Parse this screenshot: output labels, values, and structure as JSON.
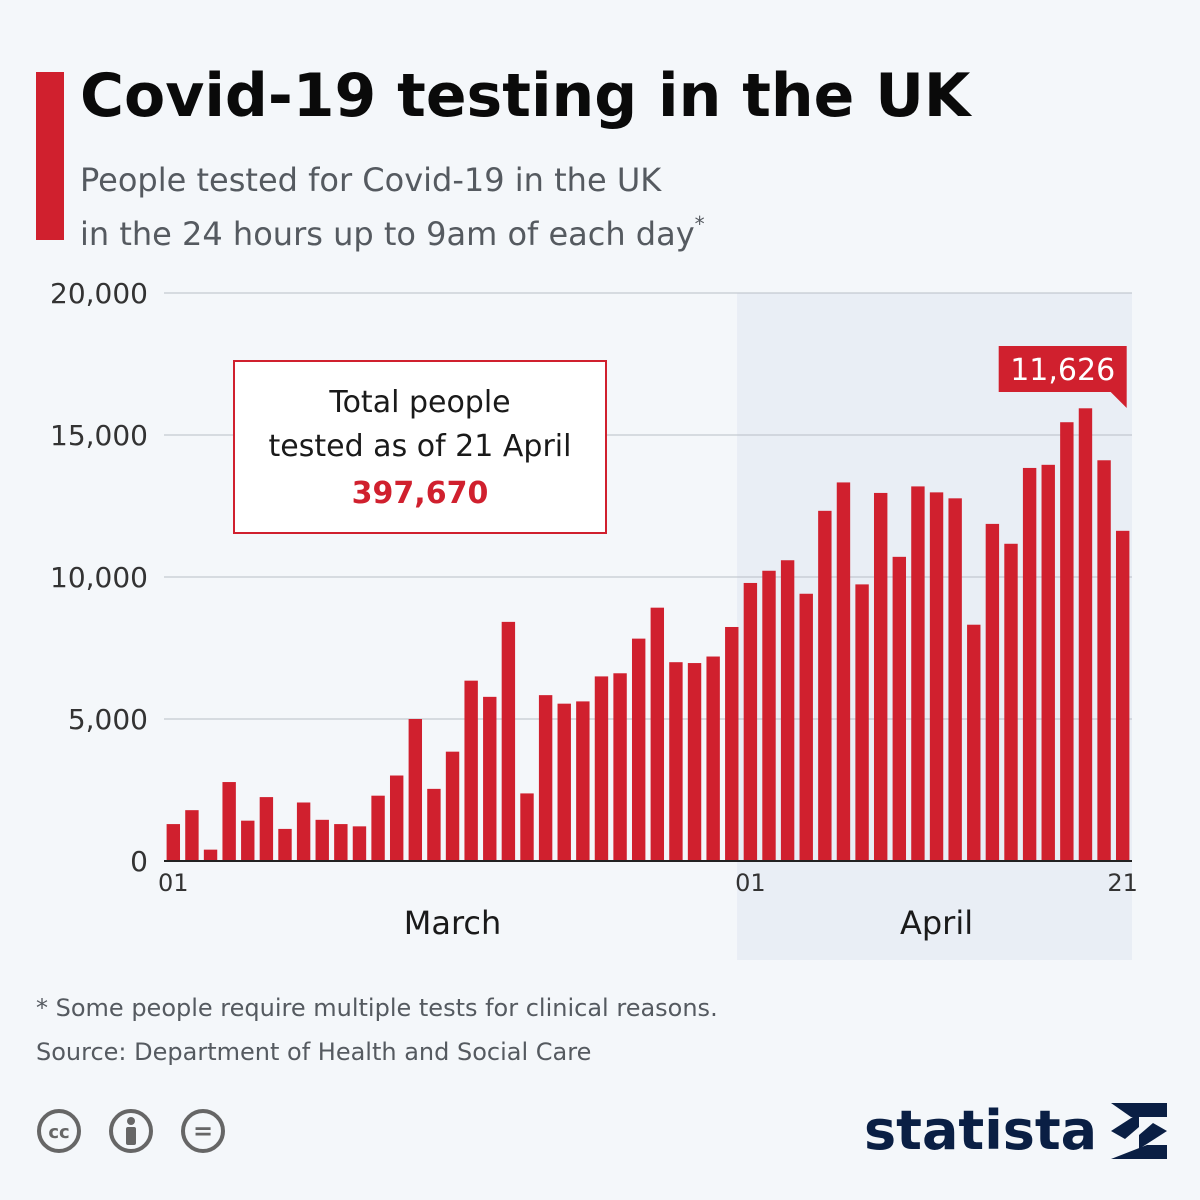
{
  "header": {
    "title": "Covid-19 testing in the UK",
    "subtitle_line1": "People tested for Covid-19 in the UK",
    "subtitle_line2": "in the 24 hours up to 9am of each day",
    "subtitle_mark": "*"
  },
  "chart_data": {
    "type": "bar",
    "title": "Covid-19 testing in the UK",
    "ylabel": "",
    "xlabel": "",
    "ylim": [
      0,
      20000
    ],
    "yticks": [
      0,
      5000,
      10000,
      15000,
      20000
    ],
    "ytick_labels": [
      "0",
      "5,000",
      "10,000",
      "15,000",
      "20,000"
    ],
    "grid": true,
    "x_tick_labels": [
      {
        "index": 0,
        "label": "01"
      },
      {
        "index": 31,
        "label": "01"
      },
      {
        "index": 51,
        "label": "21"
      }
    ],
    "month_labels": [
      {
        "label": "March",
        "start": 0,
        "end": 30
      },
      {
        "label": "April",
        "start": 31,
        "end": 51
      }
    ],
    "highlight": {
      "label": "April",
      "start": 31,
      "end": 51,
      "color": "#e9eef5"
    },
    "bar_color": "#d0202e",
    "callout": {
      "index": 51,
      "label": "11,626"
    },
    "values": [
      1300,
      1790,
      400,
      2780,
      1420,
      2250,
      1130,
      2060,
      1450,
      1300,
      1220,
      2300,
      3010,
      5000,
      2540,
      3850,
      6350,
      5780,
      8420,
      2380,
      5840,
      5540,
      5620,
      6500,
      6610,
      7830,
      8920,
      7000,
      6970,
      7200,
      8240,
      9790,
      10220,
      10590,
      9410,
      12330,
      13330,
      9740,
      12960,
      10710,
      13190,
      12980,
      12770,
      8320,
      11870,
      11170,
      13840,
      13950,
      15450,
      15940,
      14110,
      11626
    ]
  },
  "total_box": {
    "line1": "Total people",
    "line2": "tested as of 21 April",
    "value": "397,670"
  },
  "footer": {
    "note": "* Some people require multiple tests for clinical reasons.",
    "source": "Source: Department of Health and Social Care"
  },
  "license": {
    "icons": [
      "cc-icon",
      "attribution-icon",
      "no-derivatives-icon"
    ],
    "cc_text": "cc",
    "nd_text": "="
  },
  "brand": {
    "name": "statista",
    "color": "#0a1f44"
  }
}
